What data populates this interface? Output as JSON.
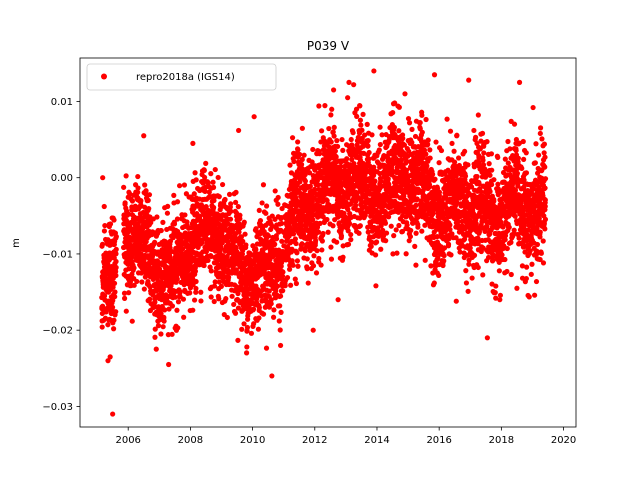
{
  "chart_data": {
    "type": "scatter",
    "title": "P039 V",
    "xlabel": "",
    "ylabel": "m",
    "xlim": [
      2004.45,
      2020.4
    ],
    "ylim": [
      -0.0327,
      0.0157
    ],
    "xticks": [
      2006,
      2008,
      2010,
      2012,
      2014,
      2016,
      2018,
      2020
    ],
    "xtick_labels": [
      "2006",
      "2008",
      "2010",
      "2012",
      "2014",
      "2016",
      "2018",
      "2020"
    ],
    "yticks": [
      -0.03,
      -0.02,
      -0.01,
      0.0,
      0.01
    ],
    "ytick_labels": [
      "−0.03",
      "−0.02",
      "−0.01",
      "0.00",
      "0.01"
    ],
    "grid": false,
    "legend": {
      "position": "top-left",
      "entries": [
        "repro2018a (IGS14)"
      ]
    },
    "colors": {
      "series": "#ff0000",
      "frame": "#000000",
      "background": "#ffffff"
    },
    "series": [
      {
        "name": "repro2018a (IGS14)",
        "marker": "dot",
        "color": "#ff0000",
        "x_start": 2005.15,
        "x_end": 2019.42,
        "note_trend": [
          [
            2005.15,
            -0.014
          ],
          [
            2005.5,
            -0.015
          ],
          [
            2005.8,
            -0.007
          ],
          [
            2006.2,
            -0.007
          ],
          [
            2006.6,
            -0.01
          ],
          [
            2007.0,
            -0.012
          ],
          [
            2007.4,
            -0.014
          ],
          [
            2007.7,
            -0.011
          ],
          [
            2008.0,
            -0.008
          ],
          [
            2008.5,
            -0.007
          ],
          [
            2009.0,
            -0.008
          ],
          [
            2009.4,
            -0.011
          ],
          [
            2009.8,
            -0.013
          ],
          [
            2010.2,
            -0.011
          ],
          [
            2010.5,
            -0.013
          ],
          [
            2010.9,
            -0.009
          ],
          [
            2011.3,
            -0.005
          ],
          [
            2011.8,
            -0.004
          ],
          [
            2012.3,
            -0.002
          ],
          [
            2012.8,
            -0.001
          ],
          [
            2013.3,
            -0.001
          ],
          [
            2013.8,
            -0.001
          ],
          [
            2014.3,
            -0.002
          ],
          [
            2014.8,
            0.001
          ],
          [
            2015.3,
            -0.001
          ],
          [
            2015.8,
            -0.003
          ],
          [
            2016.3,
            -0.005
          ],
          [
            2016.8,
            -0.003
          ],
          [
            2017.3,
            -0.004
          ],
          [
            2017.8,
            -0.006
          ],
          [
            2018.3,
            -0.003
          ],
          [
            2018.8,
            -0.004
          ],
          [
            2019.42,
            -0.004
          ]
        ],
        "outliers": [
          [
            2005.18,
            0.0
          ],
          [
            2005.5,
            -0.031
          ],
          [
            2005.42,
            -0.0235
          ],
          [
            2005.35,
            -0.024
          ],
          [
            2006.5,
            0.0055
          ],
          [
            2007.3,
            -0.0245
          ],
          [
            2008.08,
            0.0045
          ],
          [
            2009.55,
            0.0062
          ],
          [
            2010.05,
            0.008
          ],
          [
            2010.62,
            -0.026
          ],
          [
            2010.9,
            -0.022
          ],
          [
            2011.95,
            -0.02
          ],
          [
            2013.1,
            0.0125
          ],
          [
            2013.25,
            0.0122
          ],
          [
            2013.9,
            0.014
          ],
          [
            2015.85,
            0.0135
          ],
          [
            2016.55,
            -0.0162
          ],
          [
            2016.95,
            0.0128
          ],
          [
            2017.55,
            -0.021
          ],
          [
            2017.95,
            -0.016
          ],
          [
            2018.5,
            -0.0145
          ],
          [
            2019.02,
            0.0092
          ],
          [
            2014.9,
            0.011
          ],
          [
            2012.75,
            -0.016
          ]
        ]
      }
    ]
  }
}
